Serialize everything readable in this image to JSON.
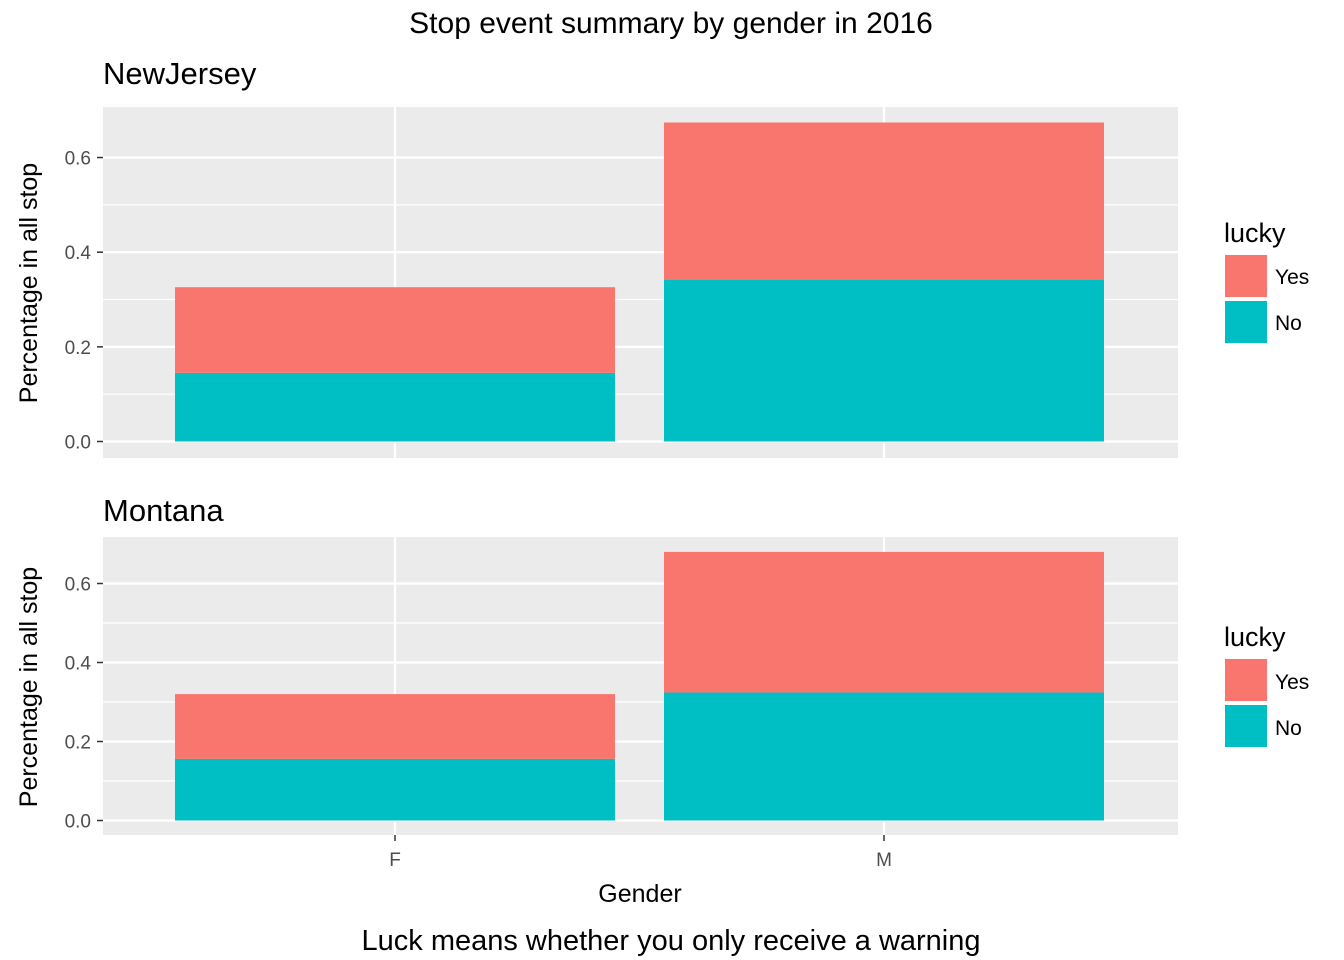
{
  "chart_data": {
    "type": "bar",
    "stacked": true,
    "title": "Stop event summary by gender in 2016",
    "caption": "Luck means whether you only receive a warning",
    "xlabel": "Gender",
    "ylabel": "Percentage in all stop",
    "categories": [
      "F",
      "M"
    ],
    "ylim": [
      0,
      0.7
    ],
    "yticks": [
      "0.0",
      "0.2",
      "0.4",
      "0.6"
    ],
    "grid": true,
    "legend_position": "right",
    "legend_title": "lucky",
    "legend_items": [
      "Yes",
      "No"
    ],
    "colors": {
      "Yes": "#F8766D",
      "No": "#00BFC4",
      "panel_bg": "#EBEBEB",
      "grid": "#FFFFFF"
    },
    "panels": [
      {
        "name": "NewJersey",
        "series": [
          {
            "name": "No",
            "values": [
              0.145,
              0.342
            ]
          },
          {
            "name": "Yes",
            "values": [
              0.181,
              0.332
            ]
          }
        ]
      },
      {
        "name": "Montana",
        "series": [
          {
            "name": "No",
            "values": [
              0.156,
              0.324
            ]
          },
          {
            "name": "Yes",
            "values": [
              0.164,
              0.356
            ]
          }
        ]
      }
    ]
  }
}
